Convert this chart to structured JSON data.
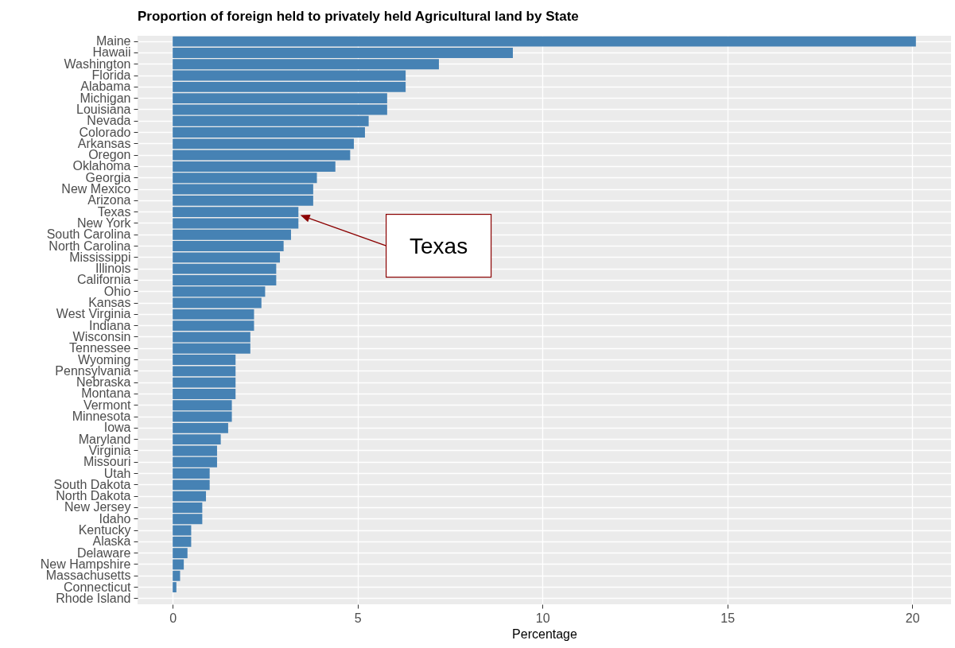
{
  "chart_data": {
    "type": "bar",
    "orientation": "horizontal",
    "title": "Proportion of foreign held to privately held Agricultural land by State",
    "xlabel": "Percentage",
    "categories": [
      "Maine",
      "Hawaii",
      "Washington",
      "Florida",
      "Alabama",
      "Michigan",
      "Louisiana",
      "Nevada",
      "Colorado",
      "Arkansas",
      "Oregon",
      "Oklahoma",
      "Georgia",
      "New Mexico",
      "Arizona",
      "Texas",
      "New York",
      "South Carolina",
      "North Carolina",
      "Mississippi",
      "Illinois",
      "California",
      "Ohio",
      "Kansas",
      "West Virginia",
      "Indiana",
      "Wisconsin",
      "Tennessee",
      "Wyoming",
      "Pennsylvania",
      "Nebraska",
      "Montana",
      "Vermont",
      "Minnesota",
      "Iowa",
      "Maryland",
      "Virginia",
      "Missouri",
      "Utah",
      "South Dakota",
      "North Dakota",
      "New Jersey",
      "Idaho",
      "Kentucky",
      "Alaska",
      "Delaware",
      "New Hampshire",
      "Massachusetts",
      "Connecticut",
      "Rhode Island"
    ],
    "values": [
      20.1,
      9.2,
      7.2,
      6.3,
      6.3,
      5.8,
      5.8,
      5.3,
      5.2,
      4.9,
      4.8,
      4.4,
      3.9,
      3.8,
      3.8,
      3.4,
      3.4,
      3.2,
      3.0,
      2.9,
      2.8,
      2.8,
      2.5,
      2.4,
      2.2,
      2.2,
      2.1,
      2.1,
      1.7,
      1.7,
      1.7,
      1.7,
      1.6,
      1.6,
      1.5,
      1.3,
      1.2,
      1.2,
      1.0,
      1.0,
      0.9,
      0.8,
      0.8,
      0.5,
      0.5,
      0.4,
      0.3,
      0.2,
      0.1,
      0.0
    ],
    "color": "#4682b4",
    "xlim": [
      -0.95,
      21.05
    ],
    "xticks": [
      0,
      5,
      10,
      15,
      20
    ],
    "grid": true,
    "annotations": [
      "Texas"
    ]
  }
}
